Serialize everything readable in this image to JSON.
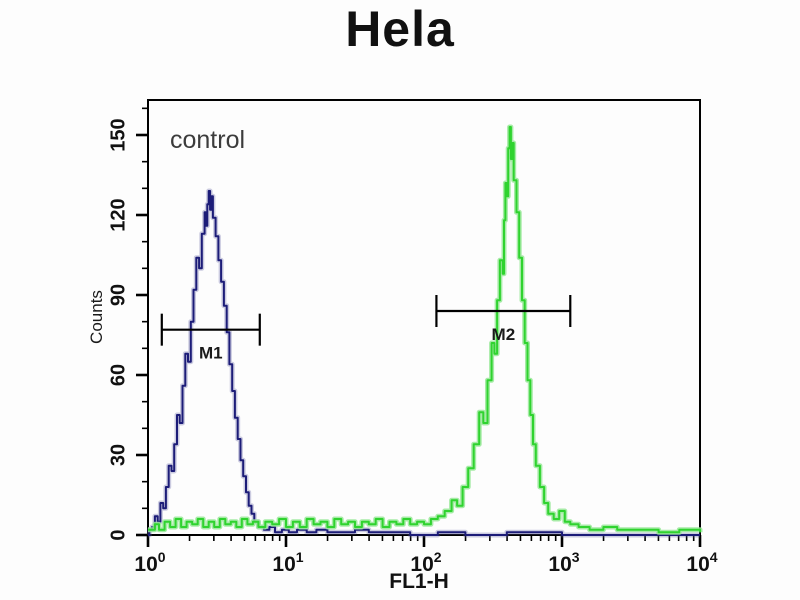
{
  "title": "Hela",
  "annotations": {
    "control": "control"
  },
  "chart_data": {
    "type": "line",
    "title": "Hela",
    "xlabel": "FL1-H",
    "ylabel": "Counts",
    "x_scale": "log10",
    "x_range_log10": [
      0,
      4
    ],
    "ylim": [
      0,
      163
    ],
    "grid": false,
    "legend": "none",
    "y_major_ticks": [
      {
        "value": 0,
        "label": "0"
      },
      {
        "value": 30,
        "label": "30"
      },
      {
        "value": 60,
        "label": "60"
      },
      {
        "value": 90,
        "label": "90"
      },
      {
        "value": 120,
        "label": "120"
      },
      {
        "value": 150,
        "label": "150"
      }
    ],
    "y_minor_step": 10,
    "x_ticks": [
      {
        "base": "10",
        "exp": "0",
        "log10": 0
      },
      {
        "base": "10",
        "exp": "1",
        "log10": 1
      },
      {
        "base": "10",
        "exp": "2",
        "log10": 2
      },
      {
        "base": "10",
        "exp": "3",
        "log10": 3
      },
      {
        "base": "10",
        "exp": "4",
        "log10": 4
      }
    ],
    "series": [
      {
        "id": "blue",
        "annotation": "control",
        "color": "#1c1c78",
        "glow": "rgba(90,90,160,0.30)",
        "peak": {
          "log10_x": 0.44,
          "count": 129
        },
        "points": [
          [
            0.0,
            0
          ],
          [
            0.01,
            2
          ],
          [
            0.03,
            3
          ],
          [
            0.05,
            7
          ],
          [
            0.07,
            5
          ],
          [
            0.09,
            12
          ],
          [
            0.11,
            10
          ],
          [
            0.13,
            18
          ],
          [
            0.15,
            26
          ],
          [
            0.17,
            24
          ],
          [
            0.19,
            34
          ],
          [
            0.21,
            45
          ],
          [
            0.23,
            42
          ],
          [
            0.25,
            56
          ],
          [
            0.27,
            68
          ],
          [
            0.29,
            65
          ],
          [
            0.31,
            80
          ],
          [
            0.33,
            92
          ],
          [
            0.35,
            104
          ],
          [
            0.37,
            100
          ],
          [
            0.39,
            113
          ],
          [
            0.41,
            121
          ],
          [
            0.42,
            116
          ],
          [
            0.43,
            124
          ],
          [
            0.44,
            129
          ],
          [
            0.45,
            122
          ],
          [
            0.46,
            127
          ],
          [
            0.47,
            119
          ],
          [
            0.49,
            112
          ],
          [
            0.51,
            103
          ],
          [
            0.53,
            95
          ],
          [
            0.55,
            86
          ],
          [
            0.57,
            76
          ],
          [
            0.59,
            64
          ],
          [
            0.61,
            54
          ],
          [
            0.63,
            44
          ],
          [
            0.65,
            36
          ],
          [
            0.67,
            28
          ],
          [
            0.69,
            22
          ],
          [
            0.71,
            16
          ],
          [
            0.73,
            11
          ],
          [
            0.75,
            8
          ],
          [
            0.77,
            5
          ],
          [
            0.8,
            3
          ],
          [
            0.84,
            2
          ],
          [
            0.88,
            3
          ],
          [
            0.92,
            1
          ],
          [
            0.97,
            2
          ],
          [
            1.02,
            1
          ],
          [
            1.08,
            2
          ],
          [
            1.15,
            1
          ],
          [
            1.22,
            2
          ],
          [
            1.3,
            1
          ],
          [
            1.4,
            1
          ],
          [
            1.5,
            2
          ],
          [
            1.6,
            1
          ],
          [
            1.75,
            1
          ],
          [
            1.9,
            0
          ],
          [
            2.1,
            1
          ],
          [
            2.3,
            0
          ],
          [
            2.6,
            1
          ],
          [
            3.0,
            0
          ],
          [
            4.0,
            0
          ]
        ]
      },
      {
        "id": "green",
        "annotation": "",
        "color": "#2fd32f",
        "glow": "rgba(150,232,150,0.85)",
        "peak": {
          "log10_x": 2.62,
          "count": 153
        },
        "points": [
          [
            0.0,
            2
          ],
          [
            0.05,
            4
          ],
          [
            0.08,
            2
          ],
          [
            0.12,
            5
          ],
          [
            0.16,
            3
          ],
          [
            0.2,
            6
          ],
          [
            0.24,
            3
          ],
          [
            0.28,
            5
          ],
          [
            0.32,
            4
          ],
          [
            0.36,
            6
          ],
          [
            0.4,
            3
          ],
          [
            0.44,
            5
          ],
          [
            0.48,
            3
          ],
          [
            0.52,
            6
          ],
          [
            0.56,
            4
          ],
          [
            0.6,
            5
          ],
          [
            0.64,
            3
          ],
          [
            0.68,
            6
          ],
          [
            0.72,
            4
          ],
          [
            0.76,
            5
          ],
          [
            0.8,
            3
          ],
          [
            0.85,
            5
          ],
          [
            0.9,
            4
          ],
          [
            0.95,
            6
          ],
          [
            1.0,
            3
          ],
          [
            1.05,
            5
          ],
          [
            1.1,
            3
          ],
          [
            1.15,
            6
          ],
          [
            1.2,
            4
          ],
          [
            1.25,
            5
          ],
          [
            1.3,
            3
          ],
          [
            1.35,
            6
          ],
          [
            1.4,
            4
          ],
          [
            1.45,
            5
          ],
          [
            1.5,
            3
          ],
          [
            1.55,
            5
          ],
          [
            1.6,
            4
          ],
          [
            1.65,
            6
          ],
          [
            1.7,
            3
          ],
          [
            1.75,
            5
          ],
          [
            1.8,
            4
          ],
          [
            1.85,
            6
          ],
          [
            1.9,
            4
          ],
          [
            1.95,
            5
          ],
          [
            2.0,
            4
          ],
          [
            2.05,
            6
          ],
          [
            2.1,
            7
          ],
          [
            2.15,
            9
          ],
          [
            2.2,
            13
          ],
          [
            2.24,
            11
          ],
          [
            2.28,
            18
          ],
          [
            2.32,
            25
          ],
          [
            2.36,
            34
          ],
          [
            2.4,
            46
          ],
          [
            2.43,
            42
          ],
          [
            2.46,
            58
          ],
          [
            2.49,
            72
          ],
          [
            2.51,
            68
          ],
          [
            2.53,
            88
          ],
          [
            2.55,
            103
          ],
          [
            2.57,
            98
          ],
          [
            2.58,
            118
          ],
          [
            2.59,
            132
          ],
          [
            2.6,
            127
          ],
          [
            2.61,
            145
          ],
          [
            2.62,
            153
          ],
          [
            2.63,
            141
          ],
          [
            2.64,
            147
          ],
          [
            2.65,
            133
          ],
          [
            2.67,
            121
          ],
          [
            2.69,
            104
          ],
          [
            2.71,
            88
          ],
          [
            2.73,
            72
          ],
          [
            2.75,
            58
          ],
          [
            2.77,
            45
          ],
          [
            2.79,
            34
          ],
          [
            2.81,
            26
          ],
          [
            2.84,
            18
          ],
          [
            2.87,
            12
          ],
          [
            2.9,
            8
          ],
          [
            2.94,
            6
          ],
          [
            2.98,
            9
          ],
          [
            3.02,
            5
          ],
          [
            3.06,
            4
          ],
          [
            3.12,
            3
          ],
          [
            3.2,
            2
          ],
          [
            3.3,
            3
          ],
          [
            3.4,
            2
          ],
          [
            3.55,
            2
          ],
          [
            3.7,
            1
          ],
          [
            3.85,
            2
          ],
          [
            4.0,
            1
          ]
        ]
      }
    ],
    "markers": [
      {
        "label": "M1",
        "log10_from": 0.1,
        "log10_to": 0.81,
        "x_from": 1.26,
        "x_to": 6.5,
        "y_count": 77
      },
      {
        "label": "M2",
        "log10_from": 2.09,
        "log10_to": 3.06,
        "x_from": 123,
        "x_to": 1150,
        "y_count": 84
      }
    ],
    "colors": {
      "frame": "#000000",
      "marker": "#000000",
      "tick_label": "#111111",
      "title": "#111111"
    }
  }
}
